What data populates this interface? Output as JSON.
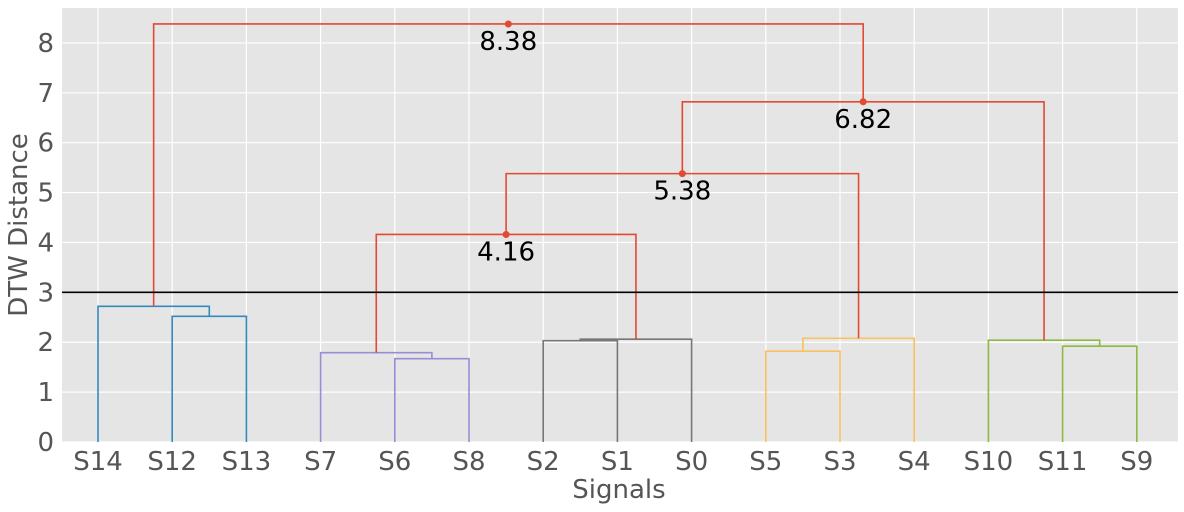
{
  "chart_data": {
    "type": "dendrogram",
    "xlabel": "Signals",
    "ylabel": "DTW Distance",
    "ylim": [
      0,
      8.7
    ],
    "yticks": [
      0,
      1,
      2,
      3,
      4,
      5,
      6,
      7,
      8
    ],
    "grid": true,
    "leaves": [
      "S14",
      "S12",
      "S13",
      "S7",
      "S6",
      "S8",
      "S2",
      "S1",
      "S0",
      "S5",
      "S3",
      "S4",
      "S10",
      "S11",
      "S9"
    ],
    "threshold": 3.0,
    "colors": {
      "blue": "#348abd",
      "purple": "#988ed5",
      "gray": "#777777",
      "yellow": "#fbc15e",
      "green": "#8eba42",
      "red": "#e24a33",
      "threshold": "#000000",
      "background": "#e5e5e5"
    },
    "links": [
      {
        "left": [
          6,
          0
        ],
        "right": [
          7,
          0
        ],
        "height": 2.03,
        "color": "gray"
      },
      {
        "left": [
          6.5,
          2.03
        ],
        "right": [
          8,
          0
        ],
        "height": 2.06,
        "color": "gray"
      },
      {
        "left": [
          4,
          0
        ],
        "right": [
          5,
          0
        ],
        "height": 1.67,
        "color": "purple"
      },
      {
        "left": [
          3,
          0
        ],
        "right": [
          4.5,
          1.67
        ],
        "height": 1.79,
        "color": "purple"
      },
      {
        "left": [
          1,
          0
        ],
        "right": [
          2,
          0
        ],
        "height": 2.52,
        "color": "blue"
      },
      {
        "left": [
          0,
          0
        ],
        "right": [
          1.5,
          2.52
        ],
        "height": 2.72,
        "color": "blue"
      },
      {
        "left": [
          9,
          0
        ],
        "right": [
          10,
          0
        ],
        "height": 1.82,
        "color": "yellow"
      },
      {
        "left": [
          9.5,
          1.82
        ],
        "right": [
          11,
          0
        ],
        "height": 2.08,
        "color": "yellow"
      },
      {
        "left": [
          13,
          0
        ],
        "right": [
          14,
          0
        ],
        "height": 1.92,
        "color": "green"
      },
      {
        "left": [
          12,
          0
        ],
        "right": [
          13.5,
          1.92
        ],
        "height": 2.04,
        "color": "green"
      },
      {
        "left": [
          3.75,
          1.79
        ],
        "right": [
          7.25,
          2.06
        ],
        "height": 4.16,
        "color": "red"
      },
      {
        "left": [
          5.5,
          4.16
        ],
        "right": [
          10.25,
          2.08
        ],
        "height": 5.38,
        "color": "red"
      },
      {
        "left": [
          7.875,
          5.38
        ],
        "right": [
          12.75,
          2.04
        ],
        "height": 6.82,
        "color": "red"
      },
      {
        "left": [
          0.75,
          2.72
        ],
        "right": [
          10.3125,
          6.82
        ],
        "height": 8.38,
        "color": "red"
      }
    ],
    "annotations": [
      {
        "x": 5.5,
        "y": 4.16,
        "text": "4.16"
      },
      {
        "x": 7.875,
        "y": 5.38,
        "text": "5.38"
      },
      {
        "x": 10.3125,
        "y": 6.82,
        "text": "6.82"
      },
      {
        "x": 5.53,
        "y": 8.38,
        "text": "8.38"
      }
    ]
  }
}
